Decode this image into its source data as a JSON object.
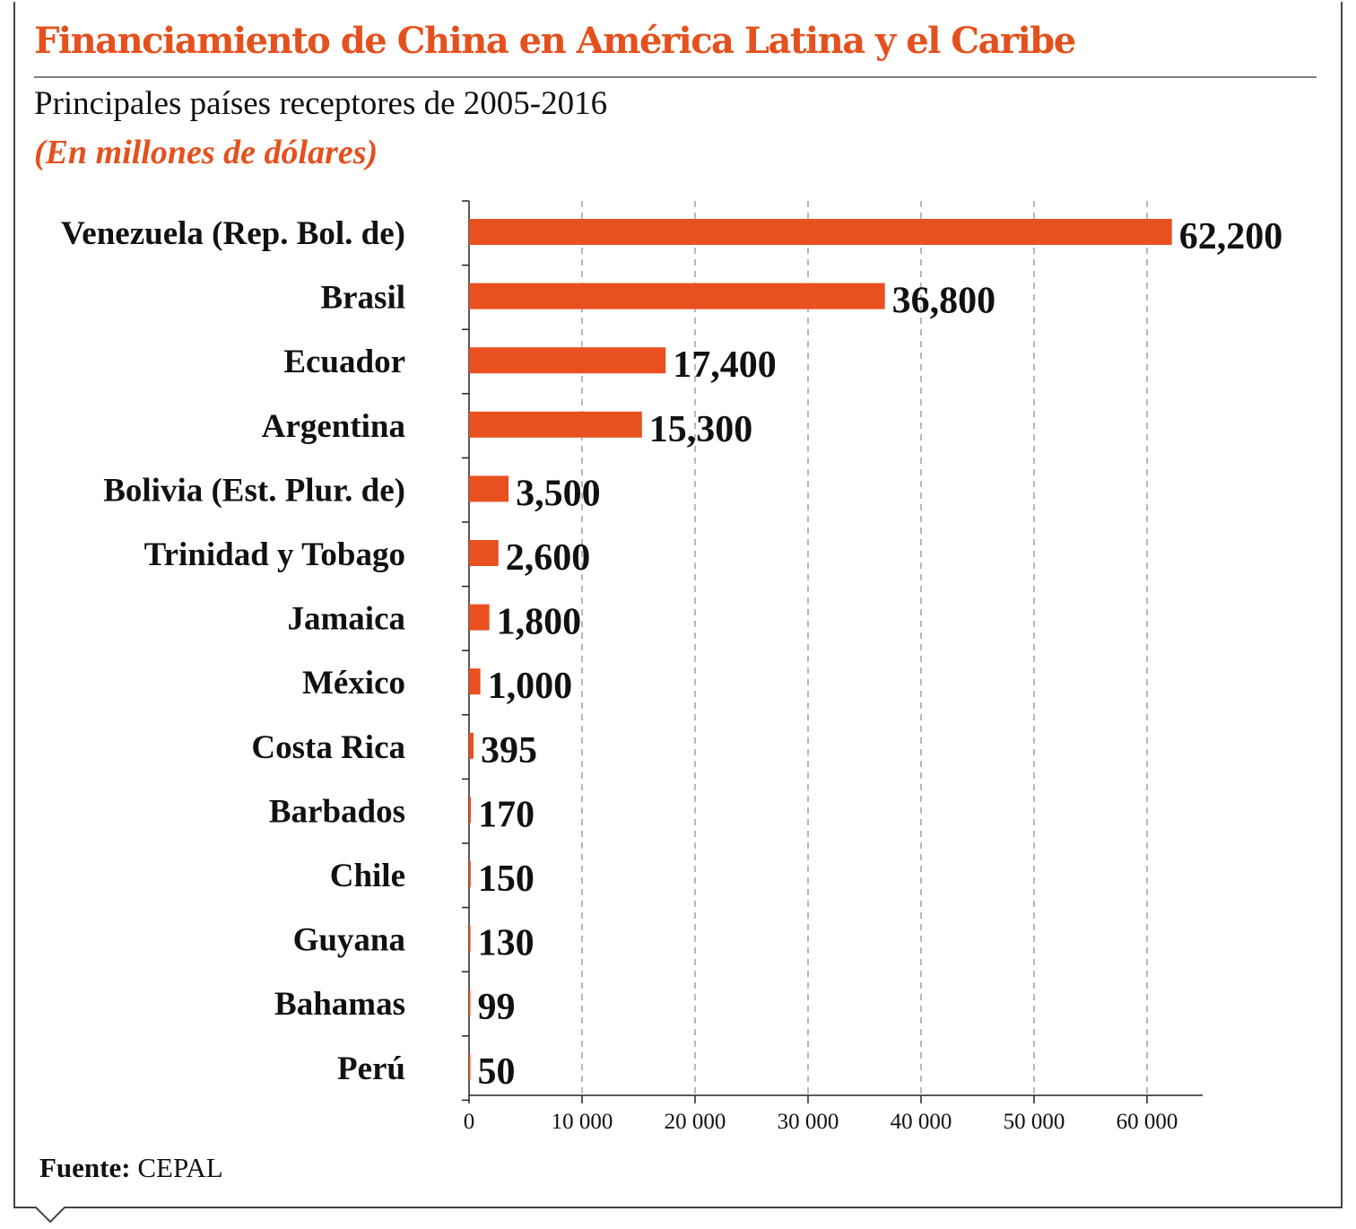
{
  "header": {
    "title": "Financiamiento de China en América Latina y el Caribe",
    "subtitle": "Principales países receptores de 2005-2016",
    "units": "(En millones de dólares)"
  },
  "footer": {
    "source_label": "Fuente:",
    "source_value": "CEPAL"
  },
  "colors": {
    "accent": "#e4511e",
    "bar": "#e9501f",
    "text": "#111111",
    "grid": "#888888"
  },
  "chart_data": {
    "type": "bar",
    "orientation": "horizontal",
    "title": "Financiamiento de China en América Latina y el Caribe",
    "subtitle": "Principales países receptores de 2005-2016",
    "ylabel": "",
    "xlabel": "",
    "xlim": [
      0,
      65000
    ],
    "grid": "vertical dashed",
    "categories": [
      "Venezuela (Rep. Bol. de)",
      "Brasil",
      "Ecuador",
      "Argentina",
      "Bolivia (Est. Plur. de)",
      "Trinidad y Tobago",
      "Jamaica",
      "México",
      "Costa Rica",
      "Barbados",
      "Chile",
      "Guyana",
      "Bahamas",
      "Perú"
    ],
    "values": [
      62200,
      36800,
      17400,
      15300,
      3500,
      2600,
      1800,
      1000,
      395,
      170,
      150,
      130,
      99,
      50
    ],
    "value_labels": [
      "62,200",
      "36,800",
      "17,400",
      "15,300",
      "3,500",
      "2,600",
      "1,800",
      "1,000",
      "395",
      "170",
      "150",
      "130",
      "99",
      "50"
    ],
    "ticks": [
      0,
      10000,
      20000,
      30000,
      40000,
      50000,
      60000
    ],
    "tick_labels": [
      "0",
      "10 000",
      "20 000",
      "30 000",
      "40 000",
      "50 000",
      "60 000"
    ]
  }
}
